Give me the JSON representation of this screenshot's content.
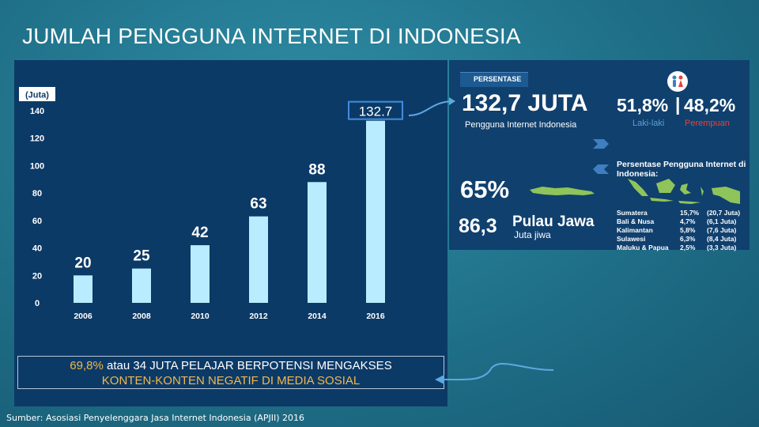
{
  "slide": {
    "title": "JUMLAH PENGGUNA INTERNET DI INDONESIA",
    "source": "Sumber:  Asosiasi Penyelenggara Jasa Internet Indonesia (APJII) 2016"
  },
  "chart_data": {
    "type": "bar",
    "title": "",
    "ylabel": "(Juta)",
    "xlabel": "",
    "categories": [
      "2006",
      "2008",
      "2010",
      "2012",
      "2014",
      "2016"
    ],
    "values": [
      20,
      25,
      42,
      63,
      88,
      132.7
    ],
    "value_labels": [
      "20",
      "25",
      "42",
      "63",
      "88",
      "132.7"
    ],
    "ylim": [
      0,
      140
    ],
    "yticks": [
      "0",
      "20",
      "40",
      "60",
      "80",
      "100",
      "120",
      "140"
    ],
    "grid": false,
    "bar_color": "#b9ecff",
    "highlight_index": 5
  },
  "callout": {
    "highlight": "69,8%",
    "line1_rest": " atau 34 JUTA PELAJAR BERPOTENSI MENGAKSES",
    "line2": "KONTEN-KONTEN NEGATIF DI MEDIA SOSIAL"
  },
  "infographic": {
    "tag": "PERSENTASE",
    "total": "132,7 JUTA",
    "total_caption": "Pengguna Internet Indonesia",
    "male_pct": "51,8%",
    "separator": "|",
    "female_pct": "48,2%",
    "male_label": "Laki-laki",
    "female_label": "Perempuan",
    "java_pct": "65%",
    "java_value": "86,3",
    "java_label": "Pulau Jawa",
    "java_unit": "Juta jiwa",
    "regions_title": "Persentase Pengguna Internet di Indonesia:",
    "regions": [
      {
        "name": "Sumatera",
        "pct": "15,7%",
        "amount": "(20,7 Juta)"
      },
      {
        "name": "Bali & Nusa",
        "pct": "4,7%",
        "amount": "(6,1 Juta)"
      },
      {
        "name": "Kalimantan",
        "pct": "5,8%",
        "amount": "(7,6 Juta)"
      },
      {
        "name": "Sulawesi",
        "pct": "6,3%",
        "amount": "(8,4 Juta)"
      },
      {
        "name": "Maluku & Papua",
        "pct": "2,5%",
        "amount": "(3,3 Juta)"
      }
    ],
    "colors": {
      "accent_red": "#e8403a",
      "accent_blue": "#5aa0d8",
      "map_green": "#8fc45a",
      "panel": "#10406e"
    }
  }
}
